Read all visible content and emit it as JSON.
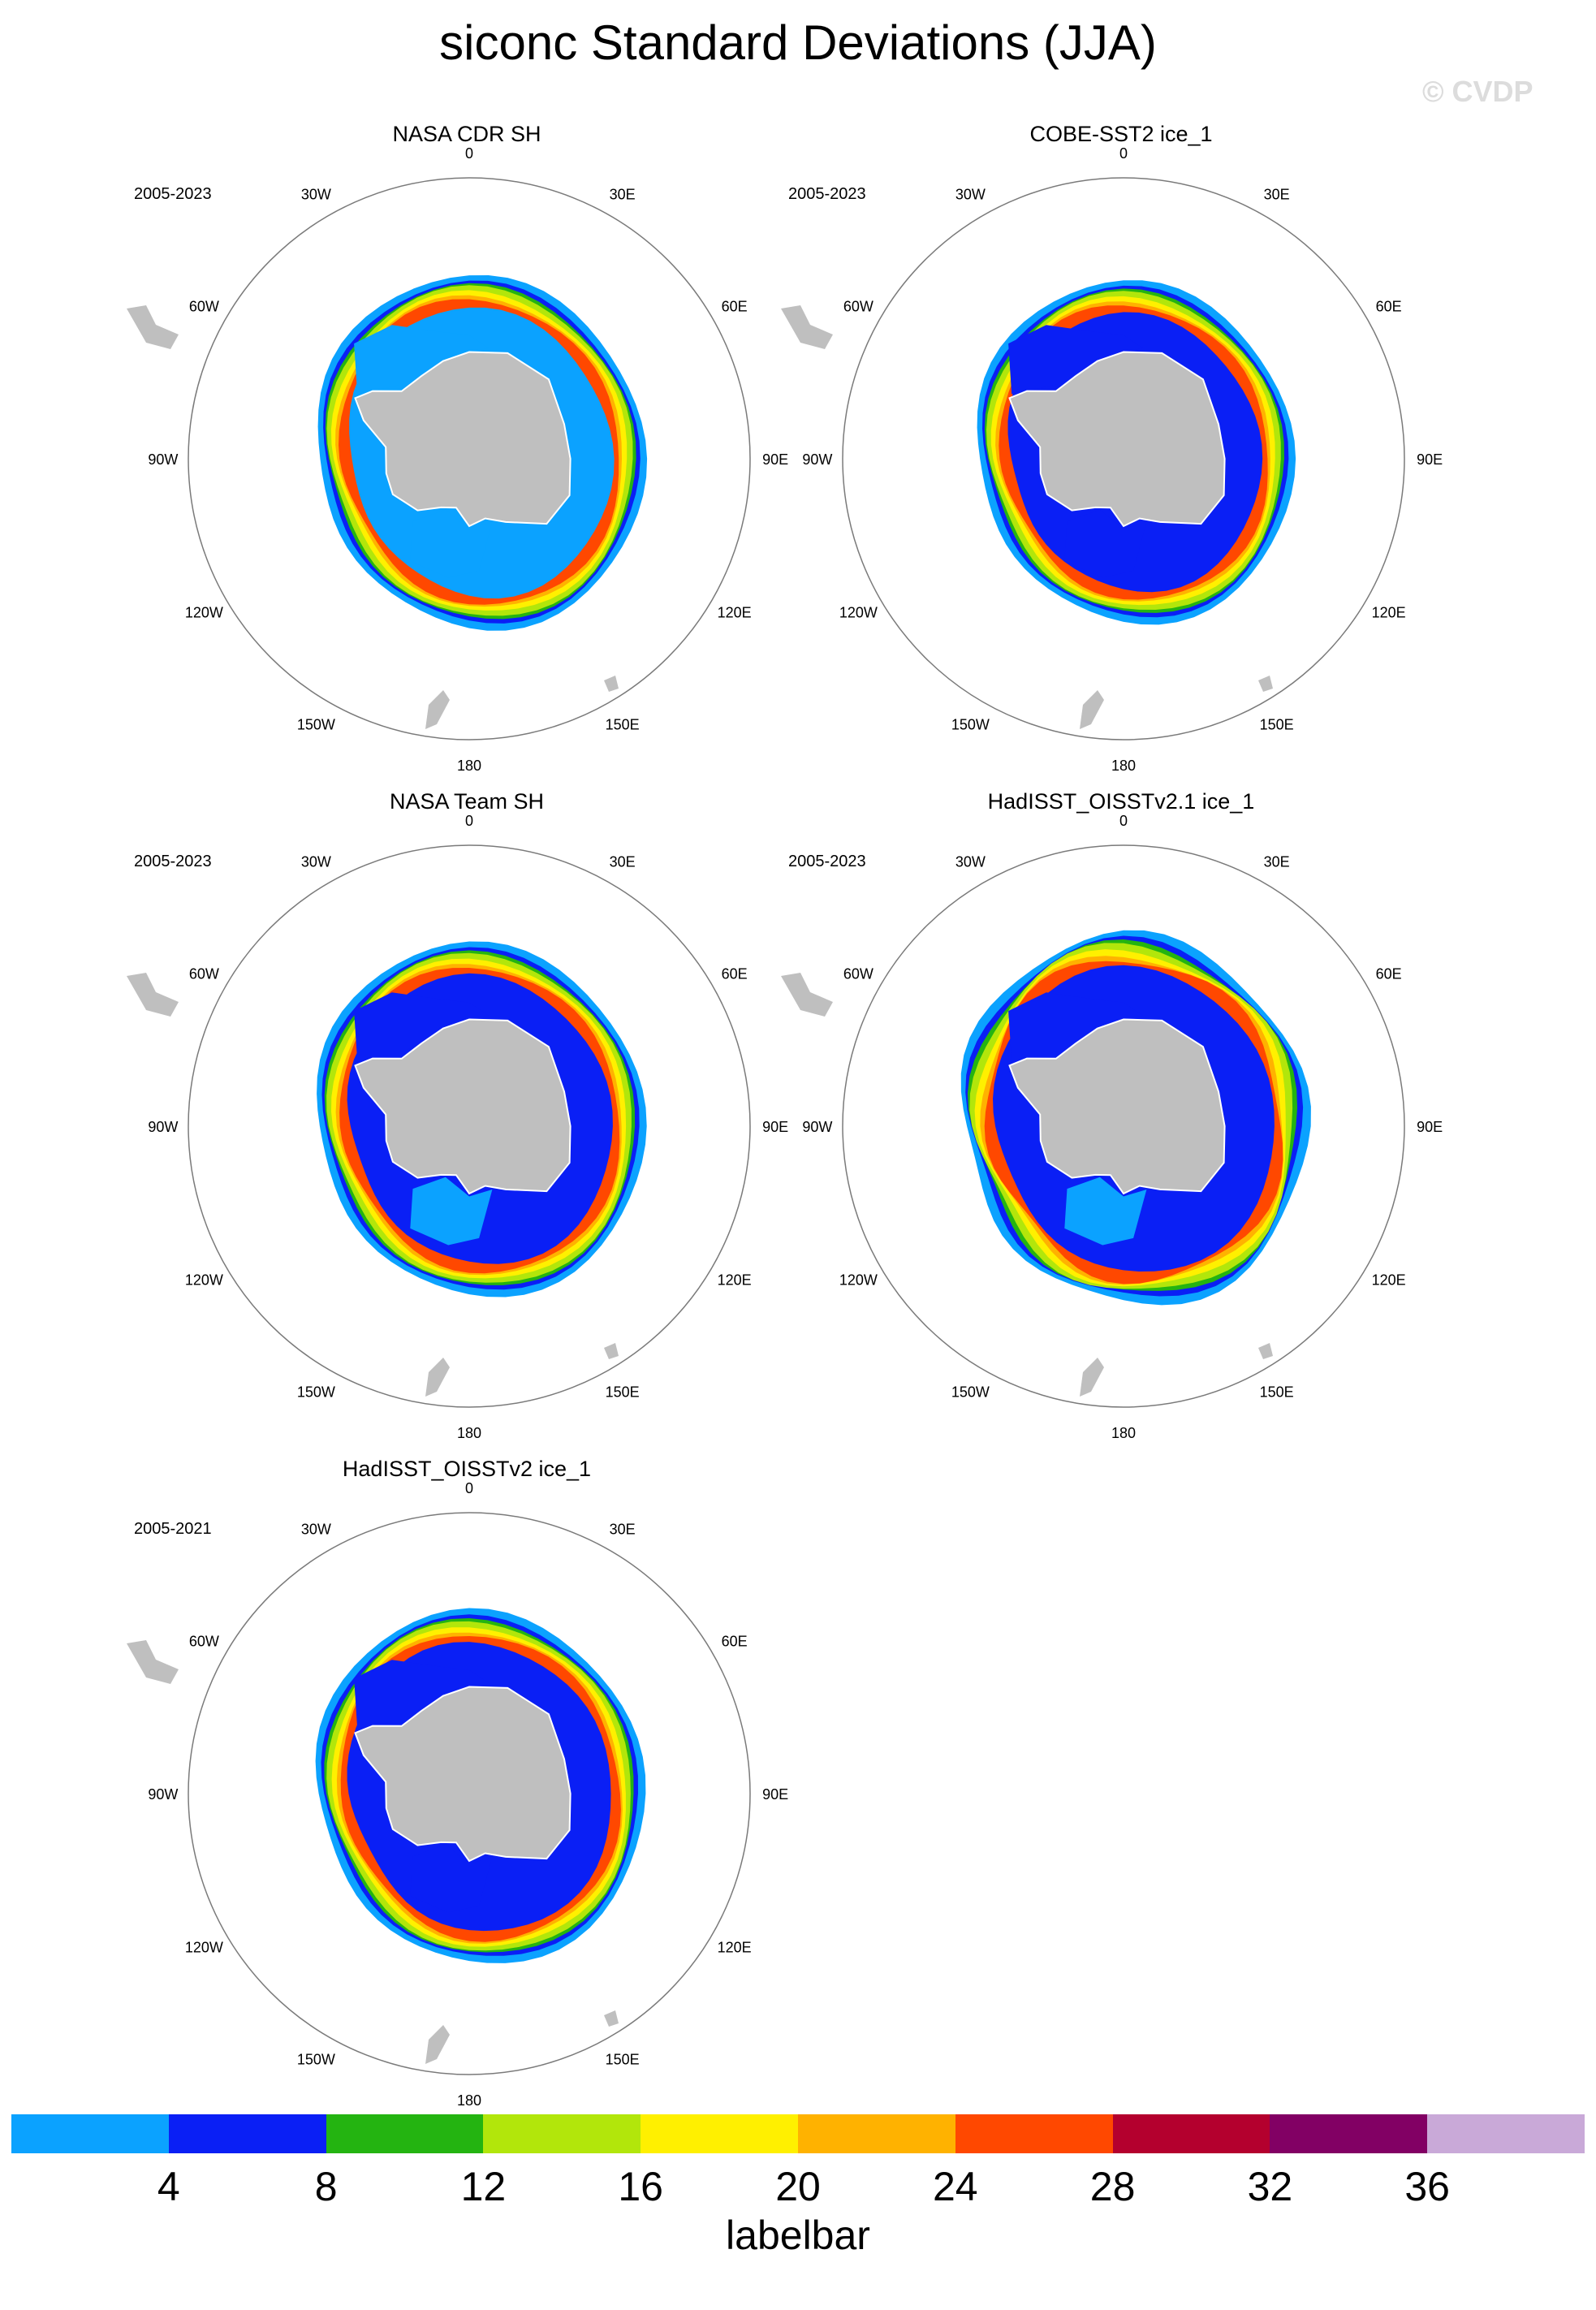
{
  "title": "siconc Standard Deviations (JJA)",
  "watermark": "© CVDP",
  "panels": [
    {
      "title": "NASA CDR SH",
      "period": "2005-2023",
      "variant": 0
    },
    {
      "title": "COBE-SST2 ice_1",
      "period": "2005-2023",
      "variant": 1
    },
    {
      "title": "NASA Team SH",
      "period": "2005-2023",
      "variant": 2
    },
    {
      "title": "HadISST_OISSTv2.1 ice_1",
      "period": "2005-2023",
      "variant": 3
    },
    {
      "title": "HadISST_OISSTv2 ice_1",
      "period": "2005-2021",
      "variant": 4
    }
  ],
  "longitude_labels": [
    "0",
    "30E",
    "60E",
    "90E",
    "120E",
    "150E",
    "180",
    "150W",
    "120W",
    "90W",
    "60W",
    "30W"
  ],
  "colorbar": {
    "colors": [
      "#0ba2ff",
      "#0a1ff5",
      "#24b411",
      "#b2e60b",
      "#fff000",
      "#ffb200",
      "#ff4800",
      "#b4002e",
      "#820064",
      "#c9a9d8"
    ],
    "tick_labels": [
      "4",
      "8",
      "12",
      "16",
      "20",
      "24",
      "28",
      "32",
      "36"
    ],
    "title": "labelbar"
  },
  "land_color": "#bfbfbf"
}
